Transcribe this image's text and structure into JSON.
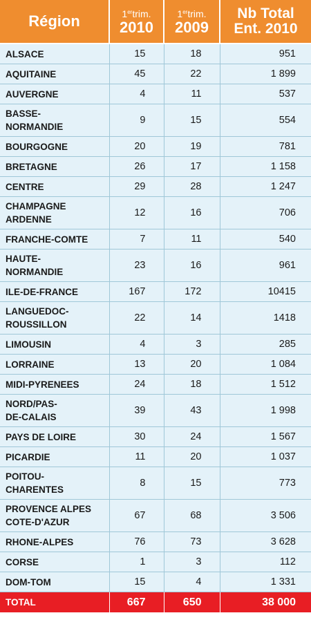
{
  "header": {
    "region": "Région",
    "q1_2010_top": "1",
    "q1_2010_sup": "er",
    "q1_2010_trim": "trim.",
    "q1_2010_year": "2010",
    "q1_2009_top": "1",
    "q1_2009_sup": "er",
    "q1_2009_trim": "trim.",
    "q1_2009_year": "2009",
    "total_line1": "Nb Total",
    "total_line2": "Ent. 2010"
  },
  "rows": [
    {
      "region": "ALSACE",
      "q1_2010": "15",
      "q1_2009": "18",
      "total": "951"
    },
    {
      "region": "AQUITAINE",
      "q1_2010": "45",
      "q1_2009": "22",
      "total": "1 899"
    },
    {
      "region": "AUVERGNE",
      "q1_2010": "4",
      "q1_2009": "11",
      "total": "537"
    },
    {
      "region": "BASSE-\nNORMANDIE",
      "q1_2010": "9",
      "q1_2009": "15",
      "total": "554"
    },
    {
      "region": "BOURGOGNE",
      "q1_2010": "20",
      "q1_2009": "19",
      "total": "781"
    },
    {
      "region": "BRETAGNE",
      "q1_2010": "26",
      "q1_2009": "17",
      "total": "1 158"
    },
    {
      "region": "CENTRE",
      "q1_2010": "29",
      "q1_2009": "28",
      "total": "1 247"
    },
    {
      "region": "CHAMPAGNE\nARDENNE",
      "q1_2010": "12",
      "q1_2009": "16",
      "total": "706"
    },
    {
      "region": "FRANCHE-COMTE",
      "q1_2010": "7",
      "q1_2009": "11",
      "total": "540"
    },
    {
      "region": "HAUTE-\nNORMANDIE",
      "q1_2010": "23",
      "q1_2009": "16",
      "total": "961"
    },
    {
      "region": "ILE-DE-FRANCE",
      "q1_2010": "167",
      "q1_2009": "172",
      "total": "10415"
    },
    {
      "region": "LANGUEDOC-\nROUSSILLON",
      "q1_2010": "22",
      "q1_2009": "14",
      "total": "1418"
    },
    {
      "region": "LIMOUSIN",
      "q1_2010": "4",
      "q1_2009": "3",
      "total": "285"
    },
    {
      "region": "LORRAINE",
      "q1_2010": "13",
      "q1_2009": "20",
      "total": "1 084"
    },
    {
      "region": "MIDI-PYRENEES",
      "q1_2010": "24",
      "q1_2009": "18",
      "total": "1 512"
    },
    {
      "region": "NORD/PAS-\nDE-CALAIS",
      "q1_2010": "39",
      "q1_2009": "43",
      "total": "1 998"
    },
    {
      "region": "PAYS DE LOIRE",
      "q1_2010": "30",
      "q1_2009": "24",
      "total": "1 567"
    },
    {
      "region": "PICARDIE",
      "q1_2010": "11",
      "q1_2009": "20",
      "total": "1 037"
    },
    {
      "region": "POITOU-\nCHARENTES",
      "q1_2010": "8",
      "q1_2009": "15",
      "total": "773"
    },
    {
      "region": "PROVENCE ALPES\nCOTE-D'AZUR",
      "q1_2010": "67",
      "q1_2009": "68",
      "total": "3 506"
    },
    {
      "region": "RHONE-ALPES",
      "q1_2010": "76",
      "q1_2009": "73",
      "total": "3 628"
    },
    {
      "region": "CORSE",
      "q1_2010": "1",
      "q1_2009": "3",
      "total": "112"
    },
    {
      "region": "DOM-TOM",
      "q1_2010": "15",
      "q1_2009": "4",
      "total": "1 331"
    }
  ],
  "footer": {
    "label": "TOTAL",
    "q1_2010": "667",
    "q1_2009": "650",
    "total": "38 000"
  },
  "colors": {
    "header_bg": "#ef8d2f",
    "row_bg": "#e4f2f9",
    "grid": "#9fc7d8",
    "total_bg": "#e81e24"
  }
}
